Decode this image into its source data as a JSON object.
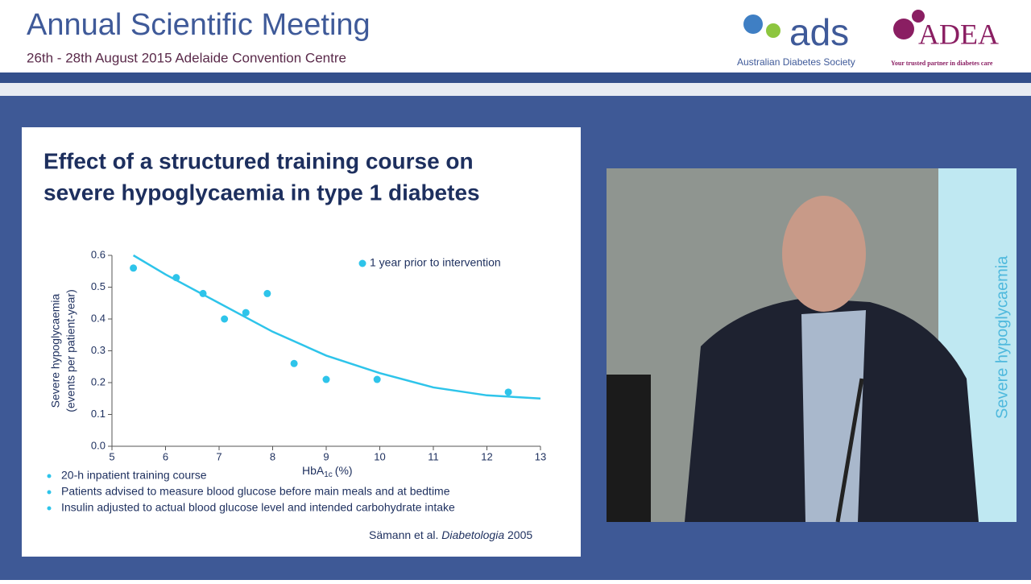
{
  "header": {
    "title": "Annual Scientific Meeting",
    "subtitle": "26th - 28th August 2015 Adelaide Convention Centre",
    "logo_ads": {
      "mark": "ads",
      "caption": "Australian Diabetes Society"
    },
    "logo_adea": {
      "mark": "ADEA",
      "caption": "Your trusted partner in diabetes care"
    }
  },
  "slide": {
    "title_lines": [
      "Effect of a structured training course on",
      "severe hypoglycaemia in type 1 diabetes"
    ],
    "bullets": [
      "20-h inpatient training course",
      "Patients advised to measure blood glucose before main meals and at bedtime",
      "Insulin adjusted to actual blood glucose level and intended carbohydrate intake"
    ],
    "citation": {
      "authors": "Sämann et al.",
      "journal": "Diabetologia",
      "year": "2005"
    }
  },
  "video": {
    "screen_text": "Severe hypoglycaemia"
  },
  "chart_data": {
    "type": "scatter",
    "y_label_lines": [
      "Severe hypoglycaemia",
      "(events per patient-year)"
    ],
    "x_label": {
      "main": "HbA",
      "sub": "1c",
      "unit": "(%)"
    },
    "xlim": [
      5,
      13
    ],
    "xticks": [
      5,
      6,
      7,
      8,
      9,
      10,
      11,
      12,
      13
    ],
    "ylim": [
      0,
      0.6
    ],
    "yticks": [
      {
        "value": 0,
        "label": "0.0"
      },
      0.1,
      0.2,
      0.3,
      0.4,
      0.5,
      0.6
    ],
    "series": [
      {
        "name": "1 year prior to intervention",
        "color": "#2ec4ea",
        "x": [
          5.4,
          6.2,
          6.7,
          7.1,
          7.5,
          7.9,
          8.4,
          9.0,
          9.95,
          12.4
        ],
        "values": [
          0.56,
          0.53,
          0.48,
          0.4,
          0.42,
          0.48,
          0.26,
          0.21,
          0.21,
          0.17
        ]
      }
    ],
    "curve": {
      "color": "#2ec4ea",
      "x": [
        5.4,
        6,
        7,
        8,
        9,
        10,
        11,
        12,
        13
      ],
      "values": [
        0.6,
        0.54,
        0.45,
        0.36,
        0.285,
        0.23,
        0.185,
        0.16,
        0.15
      ]
    }
  }
}
